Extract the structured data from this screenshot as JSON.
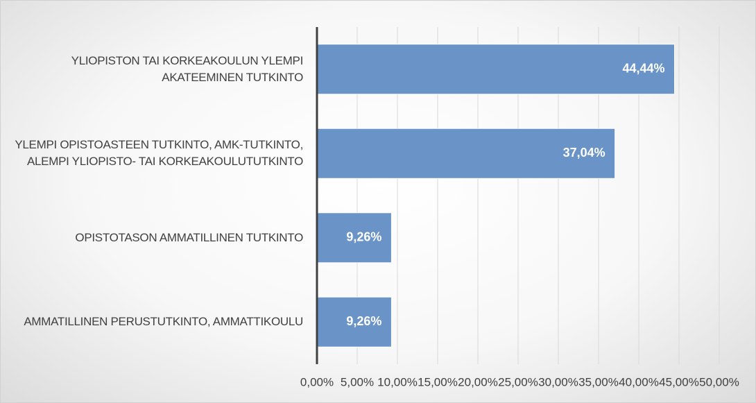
{
  "chart_data": {
    "type": "bar",
    "orientation": "horizontal",
    "categories": [
      "YLIOPISTON TAI KORKEAKOULUN YLEMPI AKATEEMINEN TUTKINTO",
      "YLEMPI OPISTOASTEEN TUTKINTO, AMK-TUTKINTO, ALEMPI YLIOPISTO- TAI KORKEAKOULUTUTKINTO",
      "OPISTOTASON AMMATILLINEN TUTKINTO",
      "AMMATILLINEN PERUSTUTKINTO, AMMATTIKOULU"
    ],
    "values": [
      44.44,
      37.04,
      9.26,
      9.26
    ],
    "value_labels": [
      "44,44%",
      "37,04%",
      "9,26%",
      "9,26%"
    ],
    "color": "#6a93c8",
    "xlim": [
      0,
      50
    ],
    "xticks": [
      {
        "value": 0,
        "label": "0,00%"
      },
      {
        "value": 5,
        "label": "5,00%"
      },
      {
        "value": 10,
        "label": "10,00%"
      },
      {
        "value": 15,
        "label": "15,00%"
      },
      {
        "value": 20,
        "label": "20,00%"
      },
      {
        "value": 25,
        "label": "25,00%"
      },
      {
        "value": 30,
        "label": "30,00%"
      },
      {
        "value": 35,
        "label": "35,00%"
      },
      {
        "value": 40,
        "label": "40,00%"
      },
      {
        "value": 45,
        "label": "45,00%"
      },
      {
        "value": 50,
        "label": "50,00%"
      }
    ],
    "grid": true
  }
}
